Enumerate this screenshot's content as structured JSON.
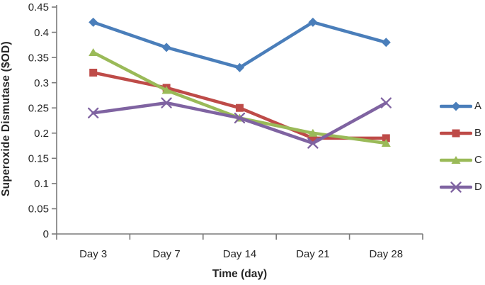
{
  "chart_data": {
    "type": "line",
    "title": "",
    "xlabel": "Time (day)",
    "ylabel": "Superoxide Dismutase ($OD)",
    "categories": [
      "Day 3",
      "Day 7",
      "Day 14",
      "Day 21",
      "Day 28"
    ],
    "series": [
      {
        "name": "A",
        "color": "#4A7EBA",
        "marker": "diamond",
        "values": [
          0.42,
          0.37,
          0.33,
          0.42,
          0.38
        ]
      },
      {
        "name": "B",
        "color": "#BE4B48",
        "marker": "square",
        "values": [
          0.32,
          0.29,
          0.25,
          0.19,
          0.19
        ]
      },
      {
        "name": "C",
        "color": "#9ABA58",
        "marker": "triangle",
        "values": [
          0.36,
          0.285,
          0.23,
          0.2,
          0.18
        ]
      },
      {
        "name": "D",
        "color": "#7F63A1",
        "marker": "x",
        "values": [
          0.24,
          0.26,
          0.23,
          0.18,
          0.26
        ]
      }
    ],
    "ylim": [
      0,
      0.45
    ],
    "ytick_labels": [
      "0",
      "0.05",
      "0.1",
      "0.15",
      "0.2",
      "0.25",
      "0.3",
      "0.35",
      "0.4",
      "0.45"
    ],
    "grid": false,
    "legend_position": "right"
  },
  "colors": {
    "axis": "#7A7A7A",
    "text": "#262626"
  }
}
